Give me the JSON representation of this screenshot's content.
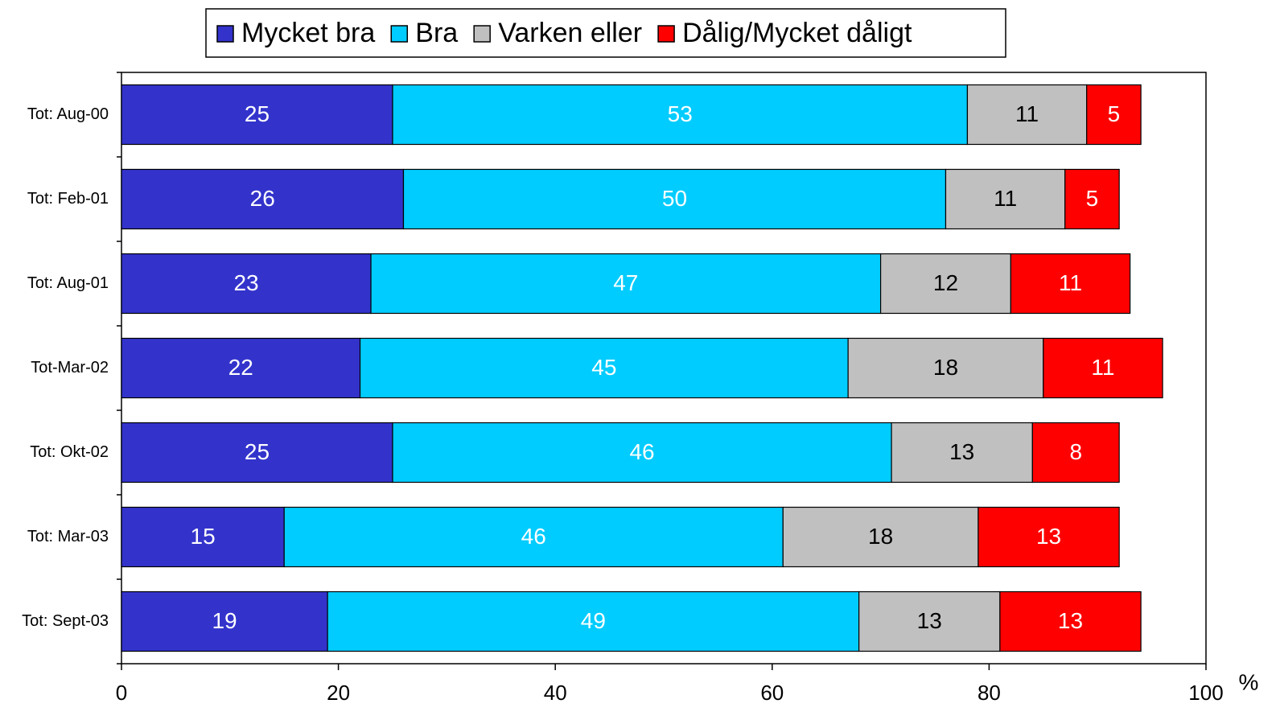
{
  "chart_data": {
    "type": "stacked_bar_horizontal",
    "categories": [
      "Tot: Aug-00",
      "Tot: Feb-01",
      "Tot: Aug-01",
      "Tot-Mar-02",
      "Tot: Okt-02",
      "Tot: Mar-03",
      "Tot: Sept-03"
    ],
    "series": [
      {
        "name": "Mycket bra",
        "color": "#3333cc",
        "label_color": "#ffffff",
        "values": [
          25,
          26,
          23,
          22,
          25,
          15,
          19
        ]
      },
      {
        "name": "Bra",
        "color": "#00ccff",
        "label_color": "#ffffff",
        "values": [
          53,
          50,
          47,
          45,
          46,
          46,
          49
        ]
      },
      {
        "name": "Varken eller",
        "color": "#c0c0c0",
        "label_color": "#000000",
        "values": [
          11,
          11,
          12,
          18,
          13,
          18,
          13
        ]
      },
      {
        "name": "Dålig/Mycket dåligt",
        "color": "#ff0000",
        "label_color": "#ffffff",
        "values": [
          5,
          5,
          11,
          11,
          8,
          13,
          13
        ]
      }
    ],
    "xlabel": "%",
    "xlim": [
      0,
      100
    ],
    "xticks": [
      0,
      20,
      40,
      60,
      80,
      100
    ],
    "legend": "top"
  }
}
